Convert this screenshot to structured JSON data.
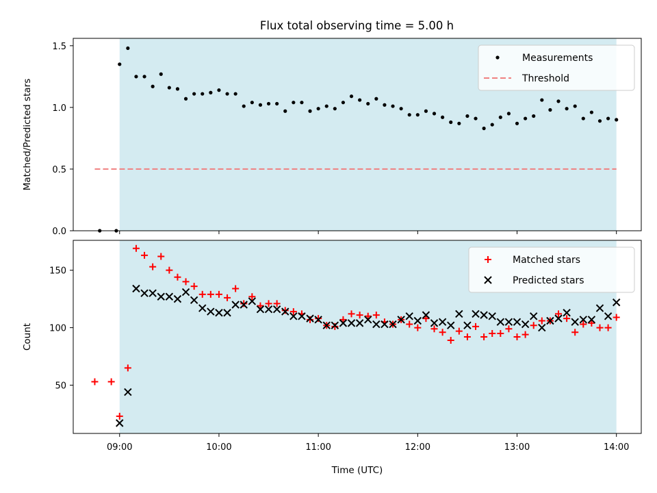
{
  "title": "Flux total observing time = 5.00 h",
  "chart_data": [
    {
      "type": "scatter",
      "ylabel": "Matched/Predicted stars",
      "xlim": [
        "08:32",
        "14:15"
      ],
      "ylim": [
        0,
        1.56
      ],
      "yticks": [
        0.0,
        0.5,
        1.0,
        1.5
      ],
      "ytick_labels": [
        "0.0",
        "0.5",
        "1.0",
        "1.5"
      ],
      "observing_window": [
        "09:00",
        "14:00"
      ],
      "observing_window_color": "#d4ebf1",
      "grid": false,
      "legend_position": "top-right",
      "series": [
        {
          "name": "Measurements",
          "color": "#000000",
          "marker": "dot",
          "x": [
            "08:48",
            "08:58",
            "09:00",
            "09:05",
            "09:10",
            "09:15",
            "09:20",
            "09:25",
            "09:30",
            "09:35",
            "09:40",
            "09:45",
            "09:50",
            "09:55",
            "10:00",
            "10:05",
            "10:10",
            "10:15",
            "10:20",
            "10:25",
            "10:30",
            "10:35",
            "10:40",
            "10:45",
            "10:50",
            "10:55",
            "11:00",
            "11:05",
            "11:10",
            "11:15",
            "11:20",
            "11:25",
            "11:30",
            "11:35",
            "11:40",
            "11:45",
            "11:50",
            "11:55",
            "12:00",
            "12:05",
            "12:10",
            "12:15",
            "12:20",
            "12:25",
            "12:30",
            "12:35",
            "12:40",
            "12:45",
            "12:50",
            "12:55",
            "13:00",
            "13:05",
            "13:10",
            "13:15",
            "13:20",
            "13:25",
            "13:30",
            "13:35",
            "13:40",
            "13:45",
            "13:50",
            "13:55",
            "14:00"
          ],
          "y": [
            0.0,
            0.0,
            1.35,
            1.48,
            1.25,
            1.25,
            1.17,
            1.27,
            1.16,
            1.15,
            1.07,
            1.11,
            1.11,
            1.12,
            1.14,
            1.11,
            1.11,
            1.01,
            1.04,
            1.02,
            1.03,
            1.03,
            0.97,
            1.04,
            1.04,
            0.97,
            0.99,
            1.01,
            0.99,
            1.04,
            1.09,
            1.06,
            1.03,
            1.07,
            1.02,
            1.01,
            0.99,
            0.94,
            0.94,
            0.97,
            0.95,
            0.92,
            0.88,
            0.87,
            0.93,
            0.91,
            0.83,
            0.86,
            0.92,
            0.95,
            0.87,
            0.91,
            0.93,
            1.06,
            0.98,
            1.05,
            0.99,
            1.01,
            0.91,
            0.96,
            0.89,
            0.91,
            0.9
          ]
        },
        {
          "name": "Threshold",
          "color": "#f08080",
          "style": "dashed",
          "x": [
            "08:45",
            "14:00"
          ],
          "y": [
            0.5,
            0.5
          ]
        }
      ]
    },
    {
      "type": "scatter",
      "xlabel": "Time (UTC)",
      "ylabel": "Count",
      "xlim": [
        "08:32",
        "14:15"
      ],
      "ylim": [
        8,
        176
      ],
      "yticks": [
        50,
        100,
        150
      ],
      "xticks": [
        "09:00",
        "10:00",
        "11:00",
        "12:00",
        "13:00",
        "14:00"
      ],
      "observing_window": [
        "09:00",
        "14:00"
      ],
      "observing_window_color": "#d4ebf1",
      "grid": false,
      "legend_position": "top-right",
      "series": [
        {
          "name": "Matched stars",
          "color": "#ff0000",
          "marker": "plus",
          "x": [
            "08:45",
            "08:55",
            "09:00",
            "09:05",
            "09:10",
            "09:15",
            "09:20",
            "09:25",
            "09:30",
            "09:35",
            "09:40",
            "09:45",
            "09:50",
            "09:55",
            "10:00",
            "10:05",
            "10:10",
            "10:15",
            "10:20",
            "10:25",
            "10:30",
            "10:35",
            "10:40",
            "10:45",
            "10:50",
            "10:55",
            "11:00",
            "11:05",
            "11:10",
            "11:15",
            "11:20",
            "11:25",
            "11:30",
            "11:35",
            "11:40",
            "11:45",
            "11:50",
            "11:55",
            "12:00",
            "12:05",
            "12:10",
            "12:15",
            "12:20",
            "12:25",
            "12:30",
            "12:35",
            "12:40",
            "12:45",
            "12:50",
            "12:55",
            "13:00",
            "13:05",
            "13:10",
            "13:15",
            "13:20",
            "13:25",
            "13:30",
            "13:35",
            "13:40",
            "13:45",
            "13:50",
            "13:55",
            "14:00"
          ],
          "y": [
            53,
            53,
            23,
            65,
            169,
            163,
            153,
            162,
            150,
            144,
            140,
            136,
            129,
            129,
            129,
            126,
            134,
            121,
            127,
            119,
            121,
            121,
            115,
            114,
            112,
            107,
            108,
            102,
            101,
            107,
            112,
            111,
            110,
            111,
            105,
            103,
            107,
            103,
            100,
            108,
            99,
            96,
            89,
            97,
            92,
            101,
            92,
            95,
            95,
            99,
            92,
            94,
            102,
            106,
            106,
            112,
            108,
            96,
            103,
            104,
            100,
            100,
            109
          ]
        },
        {
          "name": "Predicted stars",
          "color": "#000000",
          "marker": "x",
          "x": [
            "09:00",
            "09:05",
            "09:10",
            "09:15",
            "09:20",
            "09:25",
            "09:30",
            "09:35",
            "09:40",
            "09:45",
            "09:50",
            "09:55",
            "10:00",
            "10:05",
            "10:10",
            "10:15",
            "10:20",
            "10:25",
            "10:30",
            "10:35",
            "10:40",
            "10:45",
            "10:50",
            "10:55",
            "11:00",
            "11:05",
            "11:10",
            "11:15",
            "11:20",
            "11:25",
            "11:30",
            "11:35",
            "11:40",
            "11:45",
            "11:50",
            "11:55",
            "12:00",
            "12:05",
            "12:10",
            "12:15",
            "12:20",
            "12:25",
            "12:30",
            "12:35",
            "12:40",
            "12:45",
            "12:50",
            "12:55",
            "13:00",
            "13:05",
            "13:10",
            "13:15",
            "13:20",
            "13:25",
            "13:30",
            "13:35",
            "13:40",
            "13:45",
            "13:50",
            "13:55",
            "14:00"
          ],
          "y": [
            17,
            44,
            134,
            130,
            130,
            127,
            127,
            125,
            131,
            124,
            117,
            114,
            113,
            113,
            120,
            120,
            123,
            116,
            116,
            116,
            114,
            110,
            110,
            108,
            107,
            102,
            102,
            104,
            104,
            104,
            107,
            103,
            103,
            103,
            107,
            110,
            106,
            111,
            104,
            105,
            102,
            112,
            102,
            112,
            111,
            110,
            105,
            105,
            105,
            103,
            110,
            100,
            106,
            108,
            113,
            105,
            107,
            107,
            117,
            110,
            122
          ]
        }
      ]
    }
  ]
}
